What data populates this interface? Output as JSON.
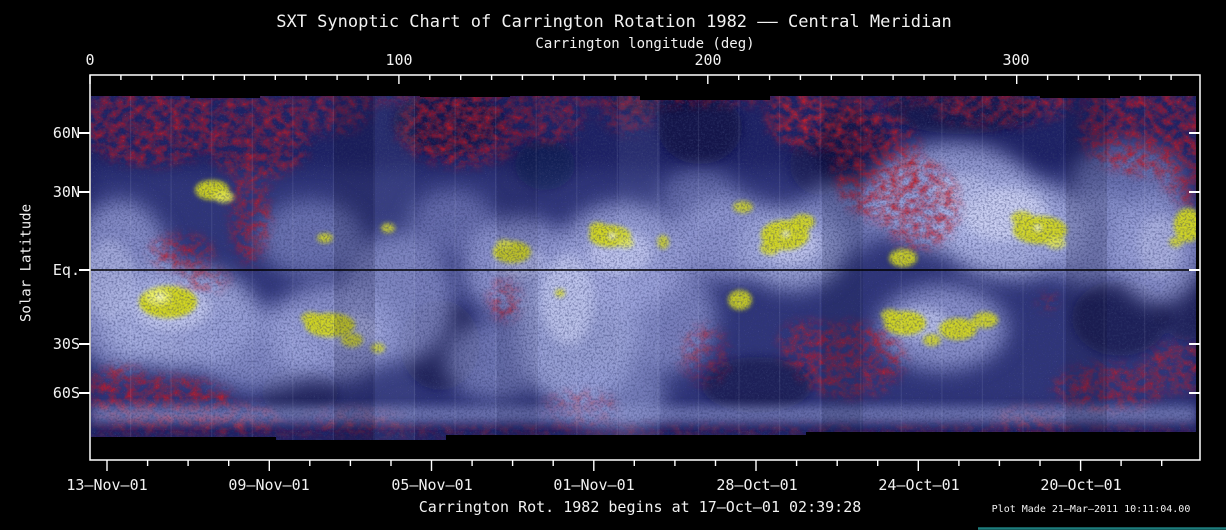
{
  "title": "SXT Synoptic Chart of Carrington Rotation 1982 —— Central Meridian",
  "top_axis": {
    "label": "Carrington longitude (deg)",
    "ticks": [
      {
        "label": "0"
      },
      {
        "label": "100"
      },
      {
        "label": "200"
      },
      {
        "label": "300"
      }
    ]
  },
  "left_axis": {
    "label": "Solar Latitude",
    "ticks": [
      {
        "label": "60N"
      },
      {
        "label": "30N"
      },
      {
        "label": "Eq."
      },
      {
        "label": "30S"
      },
      {
        "label": "60S"
      }
    ]
  },
  "bottom_axis": {
    "ticks": [
      {
        "label": "13–Nov–01"
      },
      {
        "label": "09–Nov–01"
      },
      {
        "label": "05–Nov–01"
      },
      {
        "label": "01–Nov–01"
      },
      {
        "label": "28–Oct–01"
      },
      {
        "label": "24–Oct–01"
      },
      {
        "label": "20–Oct–01"
      }
    ]
  },
  "caption": "Carrington Rot. 1982 begins at 17–Oct–01 02:39:28",
  "plot_made": "Plot Made 21–Mar–2011 10:11:04.00",
  "colors": {
    "background": "#000000",
    "frame": "#ffffff",
    "map_base_navy": "#1d2164",
    "diffuse_corona_lavender": "#a0a8de",
    "bright_corona": "#c6cbf0",
    "active_region_yellow": "#d2d61c",
    "coronal_hole_red": "#c01a26",
    "equator_line": "#000000",
    "teal_underline": "#1d7c7c"
  },
  "chart_data": {
    "type": "heatmap",
    "title": "SXT Synoptic Chart of Carrington Rotation 1982 —— Central Meridian",
    "xlabel": "Carrington longitude (deg)",
    "ylabel": "Solar Latitude",
    "x_ticks": [
      0,
      100,
      200,
      300
    ],
    "x_range": [
      0,
      360
    ],
    "x_minor_tick_step_deg": 10,
    "y_ticks": [
      "60N",
      "30N",
      "Eq.",
      "30S",
      "60S"
    ],
    "y_projection": "sine-latitude",
    "equator_line": true,
    "date_axis_ticks": [
      "13-Nov-01",
      "09-Nov-01",
      "05-Nov-01",
      "01-Nov-01",
      "28-Oct-01",
      "24-Oct-01",
      "20-Oct-01"
    ],
    "date_axis_minor_tick": "1 day",
    "rotation_start": "Carrington Rot. 1982 begins at 17-Oct-01 02:39:28",
    "colormap_semantics": {
      "navy_background": "low soft X-ray emission",
      "lavender_clouds": "diffuse coronal emission",
      "yellow_cores": "bright active regions",
      "red_speckle": "high-latitude / coronal-hole regions",
      "white_dots": "brightest active-region cores"
    },
    "active_regions_approx_deg": [
      {
        "lon": 40,
        "lat": 30
      },
      {
        "lon": 76,
        "lat": 12
      },
      {
        "lon": 96,
        "lat": 15
      },
      {
        "lon": 137,
        "lat": 6
      },
      {
        "lon": 169,
        "lat": 12
      },
      {
        "lon": 224,
        "lat": 12
      },
      {
        "lon": 230,
        "lat": 17
      },
      {
        "lon": 263,
        "lat": 4
      },
      {
        "lon": 308,
        "lat": 14
      },
      {
        "lon": 354,
        "lat": 16
      },
      {
        "lon": 25,
        "lat": -12
      },
      {
        "lon": 78,
        "lat": -20
      },
      {
        "lon": 93,
        "lat": -26
      },
      {
        "lon": 210,
        "lat": -11
      },
      {
        "lon": 264,
        "lat": -19
      },
      {
        "lon": 286,
        "lat": -21
      }
    ],
    "red_zones_approx": [
      {
        "desc": "north polar band",
        "lon_range": [
          0,
          360
        ],
        "lat_range": [
          45,
          75
        ]
      },
      {
        "desc": "south polar patches",
        "lon_range": [
          0,
          60
        ],
        "lat_range": [
          -75,
          -45
        ]
      },
      {
        "desc": "mid-latitude red mass",
        "lon_range": [
          248,
          280
        ],
        "lat_range": [
          10,
          40
        ]
      },
      {
        "desc": "southern red patch",
        "lon_range": [
          228,
          258
        ],
        "lat_range": [
          -35,
          -15
        ]
      },
      {
        "desc": "south-east patches",
        "lon_range": [
          320,
          360
        ],
        "lat_range": [
          -65,
          -35
        ]
      }
    ]
  }
}
